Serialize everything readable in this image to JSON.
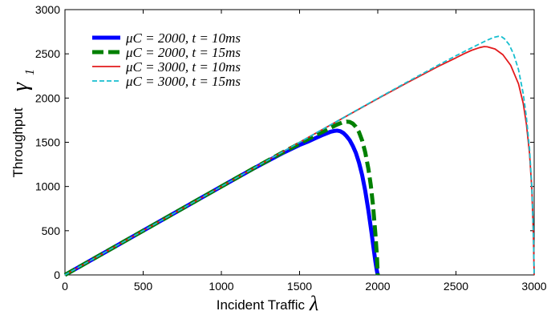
{
  "chart_data": {
    "type": "line",
    "xlabel": "Incident Traffic",
    "xlabel_symbol": "λ",
    "ylabel": "Throughput",
    "ylabel_symbol": "γ",
    "ylabel_subscript": "1",
    "xlim": [
      0,
      3000
    ],
    "ylim": [
      0,
      3000
    ],
    "xticks": [
      "0",
      "500",
      "1000",
      "1500",
      "2000",
      "2500",
      "3000"
    ],
    "yticks": [
      "0",
      "500",
      "1000",
      "1500",
      "2000",
      "2500",
      "3000"
    ],
    "grid": false,
    "legend_position": "top-left",
    "series": [
      {
        "name": "μC = 2000, t = 10ms",
        "color": "#0000ff",
        "style": "solid-thick",
        "points": [
          [
            0,
            0
          ],
          [
            500,
            500
          ],
          [
            1000,
            1000
          ],
          [
            1200,
            1198
          ],
          [
            1400,
            1385
          ],
          [
            1500,
            1470
          ],
          [
            1550,
            1505
          ],
          [
            1600,
            1545
          ],
          [
            1650,
            1585
          ],
          [
            1700,
            1620
          ],
          [
            1720,
            1628
          ],
          [
            1740,
            1632
          ],
          [
            1760,
            1625
          ],
          [
            1780,
            1605
          ],
          [
            1800,
            1570
          ],
          [
            1820,
            1525
          ],
          [
            1840,
            1460
          ],
          [
            1860,
            1380
          ],
          [
            1880,
            1270
          ],
          [
            1900,
            1130
          ],
          [
            1920,
            950
          ],
          [
            1940,
            730
          ],
          [
            1960,
            480
          ],
          [
            1975,
            280
          ],
          [
            1985,
            150
          ],
          [
            1995,
            40
          ],
          [
            2000,
            0
          ]
        ]
      },
      {
        "name": "μC = 2000, t = 15ms",
        "color": "#008000",
        "style": "dashed-thick",
        "points": [
          [
            0,
            0
          ],
          [
            500,
            500
          ],
          [
            1000,
            1000
          ],
          [
            1200,
            1199
          ],
          [
            1400,
            1393
          ],
          [
            1500,
            1485
          ],
          [
            1600,
            1578
          ],
          [
            1650,
            1620
          ],
          [
            1700,
            1665
          ],
          [
            1740,
            1700
          ],
          [
            1770,
            1722
          ],
          [
            1800,
            1733
          ],
          [
            1820,
            1730
          ],
          [
            1840,
            1712
          ],
          [
            1860,
            1675
          ],
          [
            1880,
            1615
          ],
          [
            1900,
            1520
          ],
          [
            1920,
            1385
          ],
          [
            1940,
            1200
          ],
          [
            1955,
            1020
          ],
          [
            1970,
            780
          ],
          [
            1985,
            460
          ],
          [
            1995,
            200
          ],
          [
            2000,
            0
          ]
        ]
      },
      {
        "name": "μC = 3000, t = 10ms",
        "color": "#e31a1c",
        "style": "solid-thin",
        "points": [
          [
            0,
            0
          ],
          [
            500,
            500
          ],
          [
            1000,
            1000
          ],
          [
            1500,
            1500
          ],
          [
            2000,
            1993
          ],
          [
            2200,
            2185
          ],
          [
            2400,
            2370
          ],
          [
            2500,
            2455
          ],
          [
            2550,
            2500
          ],
          [
            2600,
            2540
          ],
          [
            2650,
            2570
          ],
          [
            2680,
            2582
          ],
          [
            2700,
            2580
          ],
          [
            2750,
            2555
          ],
          [
            2800,
            2490
          ],
          [
            2850,
            2370
          ],
          [
            2900,
            2160
          ],
          [
            2930,
            1940
          ],
          [
            2950,
            1710
          ],
          [
            2970,
            1380
          ],
          [
            2985,
            970
          ],
          [
            2995,
            450
          ],
          [
            3000,
            0
          ]
        ]
      },
      {
        "name": "μC = 3000, t = 15ms",
        "color": "#17becf",
        "style": "dashed-thin",
        "points": [
          [
            0,
            0
          ],
          [
            500,
            500
          ],
          [
            1000,
            1000
          ],
          [
            1500,
            1500
          ],
          [
            2000,
            1997
          ],
          [
            2200,
            2193
          ],
          [
            2400,
            2385
          ],
          [
            2500,
            2478
          ],
          [
            2600,
            2568
          ],
          [
            2650,
            2612
          ],
          [
            2700,
            2655
          ],
          [
            2740,
            2685
          ],
          [
            2770,
            2698
          ],
          [
            2790,
            2695
          ],
          [
            2810,
            2670
          ],
          [
            2840,
            2605
          ],
          [
            2870,
            2490
          ],
          [
            2900,
            2320
          ],
          [
            2930,
            2050
          ],
          [
            2950,
            1790
          ],
          [
            2970,
            1430
          ],
          [
            2985,
            1000
          ],
          [
            2995,
            480
          ],
          [
            3000,
            0
          ]
        ]
      }
    ]
  }
}
